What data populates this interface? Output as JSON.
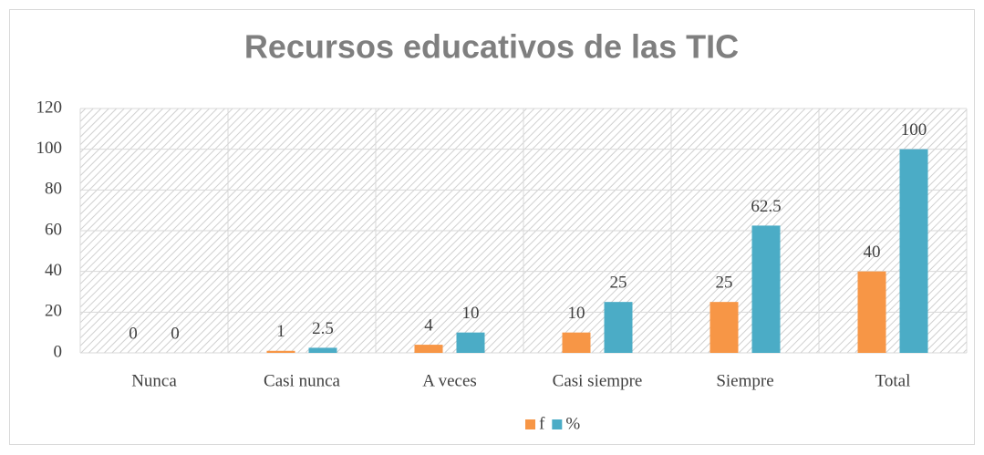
{
  "chart_data": {
    "type": "bar",
    "title": "Recursos educativos de las TIC",
    "categories": [
      "Nunca",
      "Casi nunca",
      "A veces",
      "Casi siempre",
      "Siempre",
      "Total"
    ],
    "series": [
      {
        "name": "f",
        "color": "#f79646",
        "values": [
          0,
          1,
          4,
          10,
          25,
          40
        ]
      },
      {
        "name": "%",
        "color": "#4bacc6",
        "values": [
          0,
          2.5,
          10,
          25,
          62.5,
          100
        ]
      }
    ],
    "ylim": [
      0,
      120
    ],
    "yticks": [
      0,
      20,
      40,
      60,
      80,
      100,
      120
    ],
    "grid": true,
    "legend": "bottom"
  }
}
